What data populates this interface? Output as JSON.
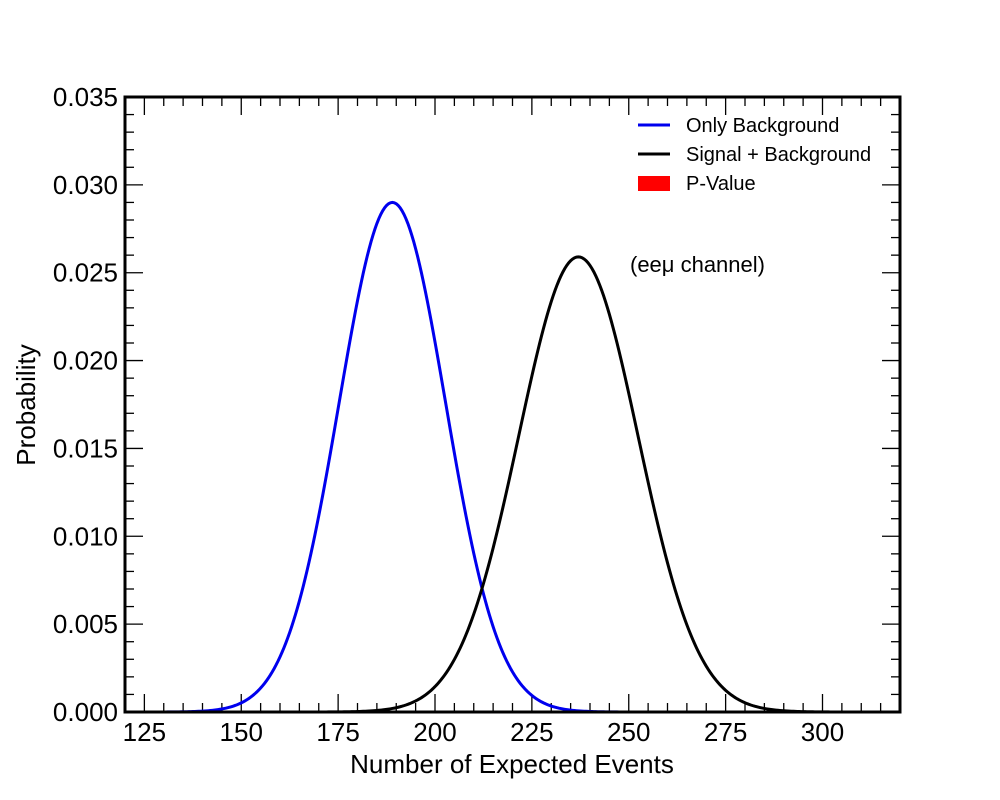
{
  "chart_data": {
    "type": "line",
    "xlabel": "Number of Expected Events",
    "ylabel": "Probability",
    "xlim": [
      120,
      320
    ],
    "ylim": [
      0,
      0.035
    ],
    "x_ticks": [
      "125",
      "150",
      "175",
      "200",
      "225",
      "250",
      "275",
      "300"
    ],
    "y_ticks": [
      "0.000",
      "0.005",
      "0.010",
      "0.015",
      "0.020",
      "0.025",
      "0.030",
      "0.035"
    ],
    "x_tick_values": [
      125,
      150,
      175,
      200,
      225,
      250,
      275,
      300
    ],
    "y_tick_values": [
      0,
      0.005,
      0.01,
      0.015,
      0.02,
      0.025,
      0.03,
      0.035
    ],
    "legend_position": "top-right",
    "grid": false,
    "annotation": "(eeμ channel)",
    "series": [
      {
        "name": "Only Background",
        "color": "#0000ee",
        "shape": "gaussian",
        "mean": 189,
        "sigma": 13.75,
        "peak": 0.029
      },
      {
        "name": "Signal + Background",
        "color": "#000000",
        "shape": "gaussian",
        "mean": 237,
        "sigma": 15.4,
        "peak": 0.0259
      }
    ],
    "legend": [
      {
        "label": "Only Background",
        "marker": "line",
        "color": "#0000ee"
      },
      {
        "label": "Signal + Background",
        "marker": "line",
        "color": "#000000"
      },
      {
        "label": "P-Value",
        "marker": "patch",
        "color": "#ff0000"
      }
    ]
  }
}
